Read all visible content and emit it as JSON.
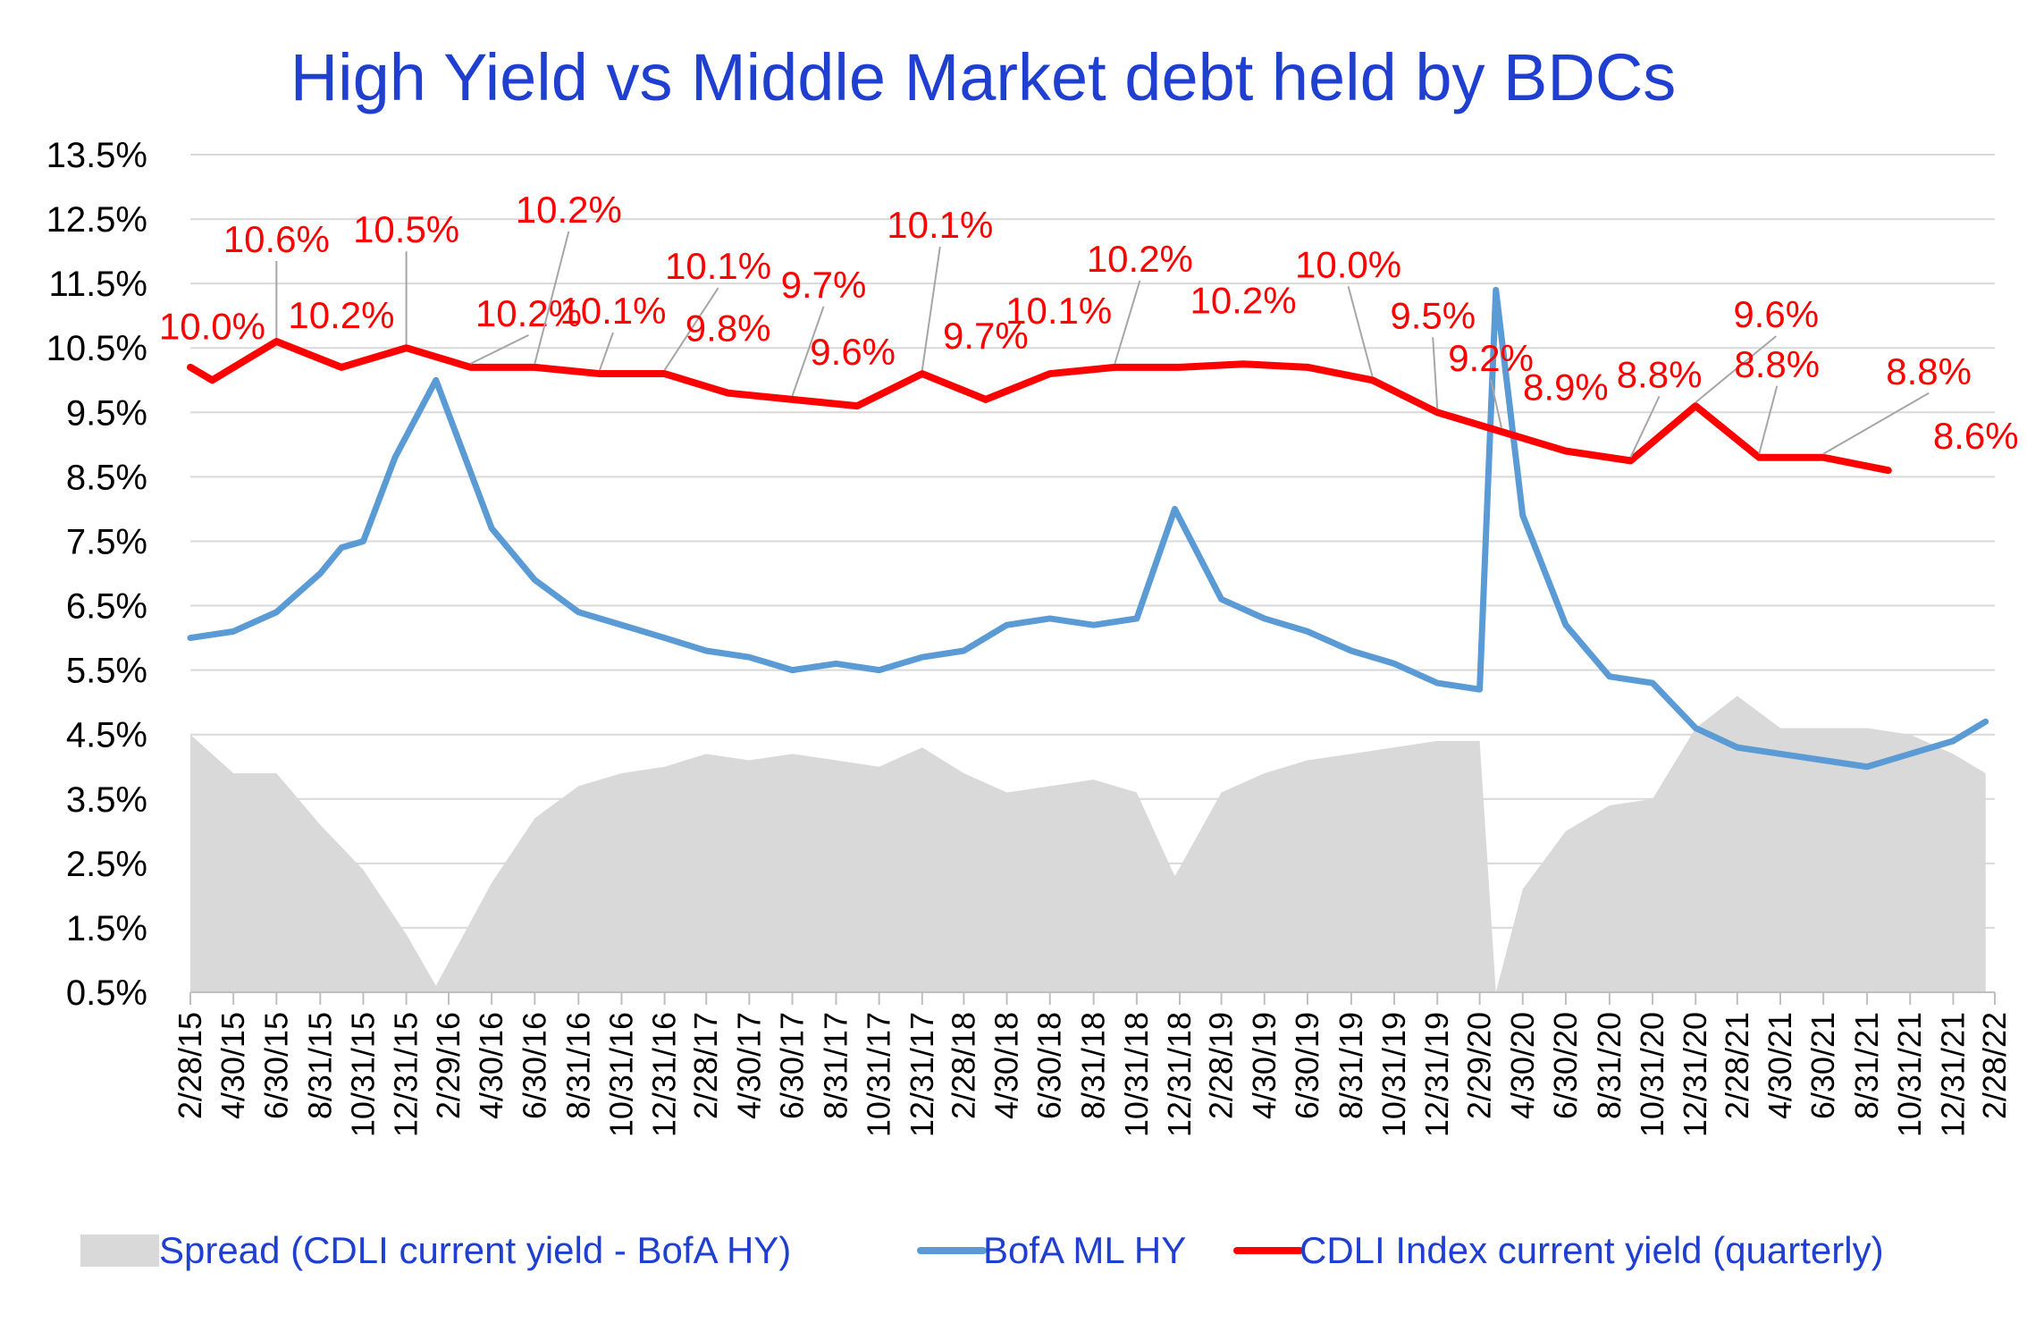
{
  "colors": {
    "title": "#1f3fd0",
    "legend_text": "#1f3fd0",
    "cdli": "#ff0000",
    "bofa": "#5b9bd5",
    "spread": "#d9d9d9",
    "grid": "#d9d9d9",
    "label_text": "#ff0000",
    "leader": "#a6a6a6"
  },
  "chart_data": {
    "type": "line",
    "title": "High Yield  vs  Middle Market debt held by BDCs",
    "ylim": [
      0.5,
      13.5
    ],
    "y_ticks": [
      "13.5%",
      "12.5%",
      "11.5%",
      "10.5%",
      "9.5%",
      "8.5%",
      "7.5%",
      "6.5%",
      "5.5%",
      "4.5%",
      "3.5%",
      "2.5%",
      "1.5%",
      "0.5%"
    ],
    "x_ticks": [
      "2/28/15",
      "4/30/15",
      "6/30/15",
      "8/31/15",
      "10/31/15",
      "12/31/15",
      "2/29/16",
      "4/30/16",
      "6/30/16",
      "8/31/16",
      "10/31/16",
      "12/31/16",
      "2/28/17",
      "4/30/17",
      "6/30/17",
      "8/31/17",
      "10/31/17",
      "12/31/17",
      "2/28/18",
      "4/30/18",
      "6/30/18",
      "8/31/18",
      "10/31/18",
      "12/31/18",
      "2/28/19",
      "4/30/19",
      "6/30/19",
      "8/31/19",
      "10/31/19",
      "12/31/19",
      "2/29/20",
      "4/30/20",
      "6/30/20",
      "8/31/20",
      "10/31/20",
      "12/31/20",
      "2/28/21",
      "4/30/21",
      "6/30/21",
      "8/31/21",
      "10/31/21",
      "12/31/21",
      "2/28/22"
    ],
    "grid": true,
    "legend_position": "bottom",
    "series": [
      {
        "name": "CDLI Index current yield (quarterly)",
        "style": "line",
        "color": "#ff0000",
        "x": [
          "2/28/15",
          "3/31/15",
          "6/30/15",
          "9/30/15",
          "12/31/15",
          "3/31/16",
          "6/30/16",
          "9/30/16",
          "12/31/16",
          "3/31/17",
          "6/30/17",
          "9/30/17",
          "12/31/17",
          "3/31/18",
          "6/30/18",
          "9/30/18",
          "12/31/18",
          "3/31/19",
          "6/30/19",
          "9/30/19",
          "12/31/19",
          "3/31/20",
          "6/30/20",
          "9/30/20",
          "12/31/20",
          "3/31/21",
          "6/30/21",
          "9/30/21"
        ],
        "values": [
          10.2,
          10.0,
          10.6,
          10.2,
          10.5,
          10.2,
          10.2,
          10.1,
          10.1,
          9.8,
          9.7,
          9.6,
          10.1,
          9.7,
          10.1,
          10.2,
          10.2,
          10.25,
          10.2,
          10.0,
          9.5,
          9.2,
          8.9,
          8.75,
          9.6,
          8.8,
          8.8,
          8.6
        ],
        "data_labels": [
          {
            "text": "10.0%",
            "x": "3/31/15"
          },
          {
            "text": "10.6%",
            "x": "6/30/15"
          },
          {
            "text": "10.2%",
            "x": "9/30/15"
          },
          {
            "text": "10.5%",
            "x": "12/31/15"
          },
          {
            "text": "10.2%",
            "x": "3/31/16"
          },
          {
            "text": "10.2%",
            "x": "6/30/16"
          },
          {
            "text": "10.1%",
            "x": "9/30/16"
          },
          {
            "text": "10.1%",
            "x": "12/31/16"
          },
          {
            "text": "9.8%",
            "x": "3/31/17"
          },
          {
            "text": "9.7%",
            "x": "6/30/17"
          },
          {
            "text": "9.6%",
            "x": "9/30/17"
          },
          {
            "text": "10.1%",
            "x": "12/31/17"
          },
          {
            "text": "9.7%",
            "x": "3/31/18"
          },
          {
            "text": "10.1%",
            "x": "6/30/18"
          },
          {
            "text": "10.2%",
            "x": "9/30/18"
          },
          {
            "text": "10.2%",
            "x": "3/31/19"
          },
          {
            "text": "10.0%",
            "x": "9/30/19"
          },
          {
            "text": "9.5%",
            "x": "12/31/19"
          },
          {
            "text": "9.2%",
            "x": "3/31/20"
          },
          {
            "text": "8.9%",
            "x": "6/30/20"
          },
          {
            "text": "8.8%",
            "x": "9/30/20"
          },
          {
            "text": "9.6%",
            "x": "12/31/20"
          },
          {
            "text": "8.8%",
            "x": "3/31/21"
          },
          {
            "text": "8.8%",
            "x": "6/30/21"
          },
          {
            "text": "8.6%",
            "x": "9/30/21"
          }
        ]
      },
      {
        "name": "BofA ML HY",
        "style": "line",
        "color": "#5b9bd5",
        "x": [
          "2/28/15",
          "4/30/15",
          "6/30/15",
          "8/31/15",
          "9/30/15",
          "10/31/15",
          "12/15/15",
          "2/11/16",
          "4/30/16",
          "6/30/16",
          "8/31/16",
          "10/31/16",
          "12/31/16",
          "2/28/17",
          "4/30/17",
          "6/30/17",
          "8/31/17",
          "10/31/17",
          "12/31/17",
          "2/28/18",
          "4/30/18",
          "6/30/18",
          "8/31/18",
          "10/31/18",
          "12/24/18",
          "2/28/19",
          "4/30/19",
          "6/30/19",
          "8/31/19",
          "10/31/19",
          "12/31/19",
          "2/29/20",
          "3/23/20",
          "4/30/20",
          "6/30/20",
          "8/31/20",
          "10/31/20",
          "12/31/20",
          "2/28/21",
          "4/30/21",
          "6/30/21",
          "8/31/21",
          "10/31/21",
          "12/31/21",
          "2/15/22"
        ],
        "values": [
          6.0,
          6.1,
          6.4,
          7.0,
          7.4,
          7.5,
          8.8,
          10.0,
          7.7,
          6.9,
          6.4,
          6.2,
          6.0,
          5.8,
          5.7,
          5.5,
          5.6,
          5.5,
          5.7,
          5.8,
          6.2,
          6.3,
          6.2,
          6.3,
          8.0,
          6.6,
          6.3,
          6.1,
          5.8,
          5.6,
          5.3,
          5.2,
          11.4,
          7.9,
          6.2,
          5.4,
          5.3,
          4.6,
          4.3,
          4.2,
          4.1,
          4.0,
          4.2,
          4.4,
          4.7
        ]
      },
      {
        "name": "Spread (CDLI current yield - BofA HY)",
        "style": "area",
        "color": "#d9d9d9",
        "x": [
          "2/28/15",
          "4/30/15",
          "6/30/15",
          "8/31/15",
          "10/31/15",
          "12/31/15",
          "2/11/16",
          "4/30/16",
          "6/30/16",
          "8/31/16",
          "10/31/16",
          "12/31/16",
          "2/28/17",
          "4/30/17",
          "6/30/17",
          "8/31/17",
          "10/31/17",
          "12/31/17",
          "2/28/18",
          "4/30/18",
          "6/30/18",
          "8/31/18",
          "10/31/18",
          "12/24/18",
          "2/28/19",
          "4/30/19",
          "6/30/19",
          "8/31/19",
          "10/31/19",
          "12/31/19",
          "2/29/20",
          "3/23/20",
          "4/30/20",
          "6/30/20",
          "8/31/20",
          "10/31/20",
          "12/31/20",
          "2/28/21",
          "4/30/21",
          "6/30/21",
          "8/31/21",
          "10/31/21",
          "12/31/21",
          "2/15/22"
        ],
        "values": [
          4.5,
          3.9,
          3.9,
          3.1,
          2.4,
          1.4,
          0.6,
          2.2,
          3.2,
          3.7,
          3.9,
          4.0,
          4.2,
          4.1,
          4.2,
          4.1,
          4.0,
          4.3,
          3.9,
          3.6,
          3.7,
          3.8,
          3.6,
          2.3,
          3.6,
          3.9,
          4.1,
          4.2,
          4.3,
          4.4,
          4.4,
          0.5,
          2.1,
          3.0,
          3.4,
          3.5,
          4.6,
          5.1,
          4.6,
          4.6,
          4.6,
          4.5,
          4.2,
          3.9
        ]
      }
    ]
  },
  "legend": {
    "items": [
      {
        "label": "Spread (CDLI current yield - BofA HY)",
        "swatch": "area",
        "color": "#d9d9d9"
      },
      {
        "label": "BofA ML HY",
        "swatch": "line",
        "color": "#5b9bd5"
      },
      {
        "label": "CDLI Index current yield (quarterly)",
        "swatch": "line",
        "color": "#ff0000"
      }
    ]
  }
}
